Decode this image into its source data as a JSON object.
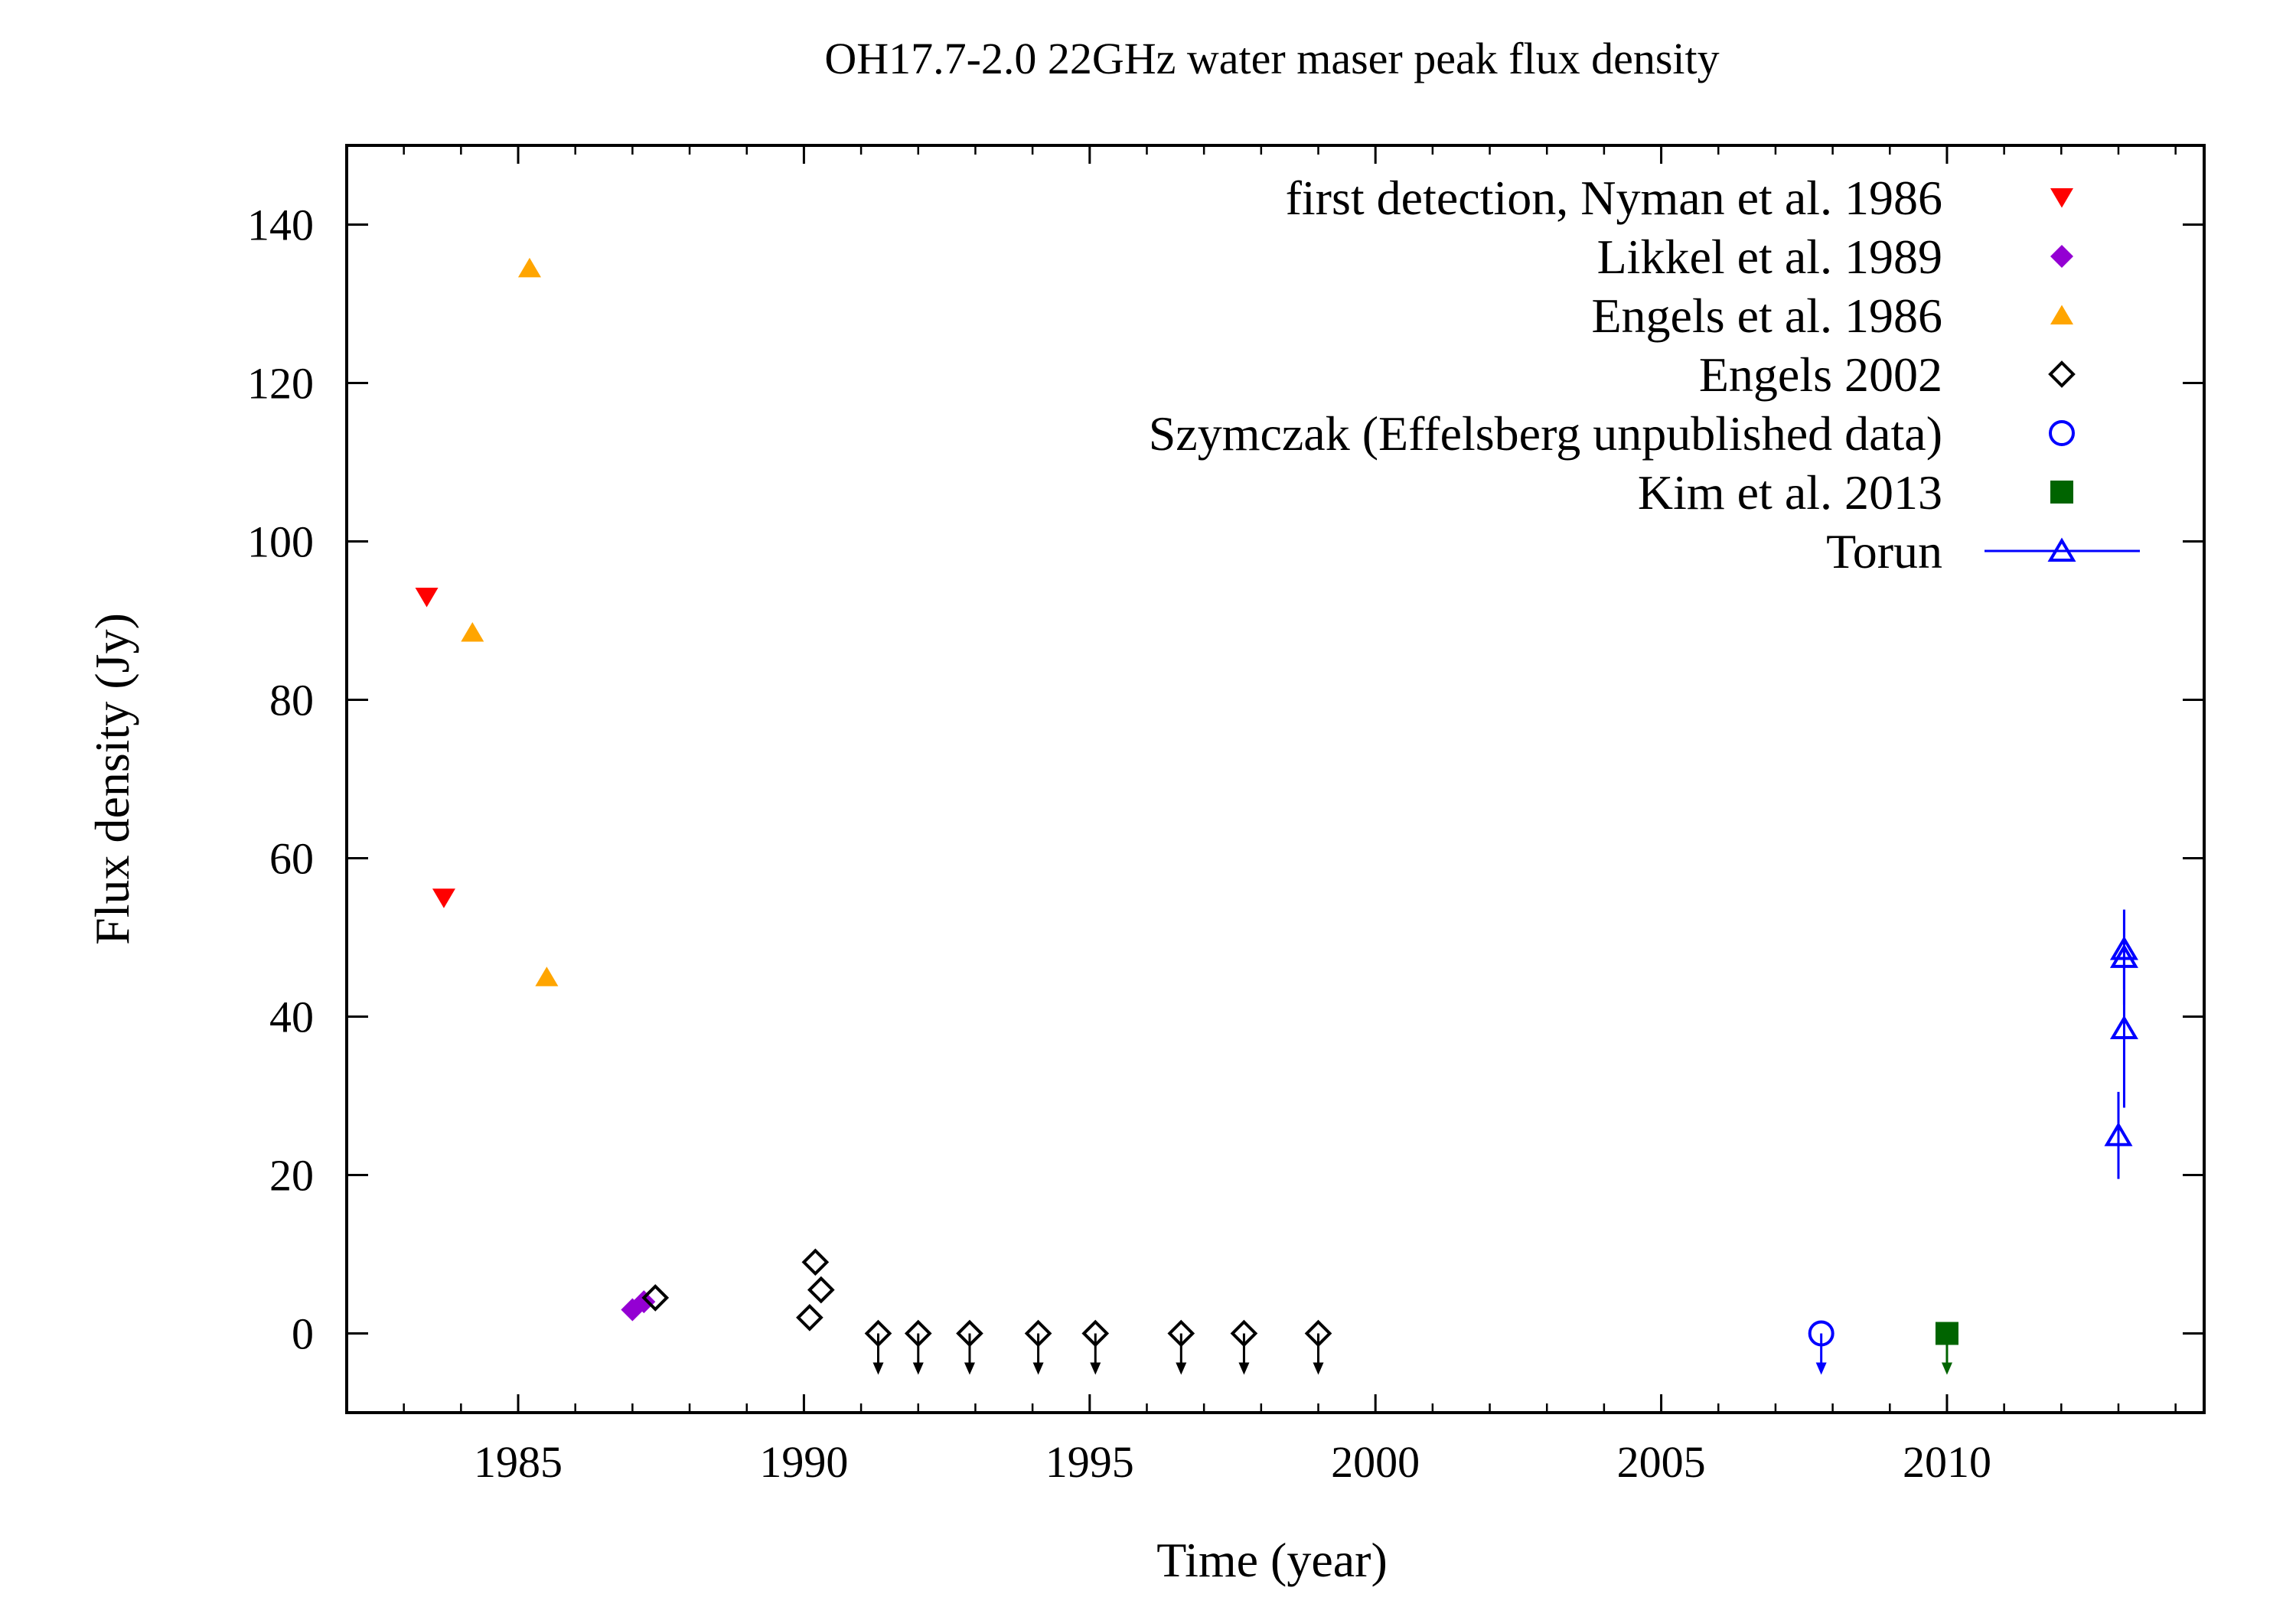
{
  "chart_data": {
    "type": "scatter",
    "title": "OH17.7-2.0 22GHz water maser peak flux density",
    "xlabel": "Time (year)",
    "ylabel": "Flux density (Jy)",
    "xlim": [
      1982.0,
      2014.5
    ],
    "ylim": [
      -10,
      150
    ],
    "xticks": [
      1985,
      1990,
      1995,
      2000,
      2005,
      2010
    ],
    "yticks": [
      0,
      20,
      40,
      60,
      80,
      100,
      120,
      140
    ],
    "xtick_labels": [
      "1985",
      "1990",
      "1995",
      "2000",
      "2005",
      "2010"
    ],
    "ytick_labels": [
      "0",
      "20",
      "40",
      "60",
      "80",
      "100",
      "120",
      "140"
    ],
    "grid": false,
    "legend_position": "top-right",
    "series": [
      {
        "name": "first detection, Nyman et al. 1986",
        "marker": "triangle-down-filled",
        "color": "#ff0000",
        "points": [
          [
            1983.4,
            93
          ],
          [
            1983.7,
            55
          ]
        ]
      },
      {
        "name": "Likkel et al. 1989",
        "marker": "diamond-filled",
        "color": "#9400d3",
        "points": [
          [
            1987.0,
            3
          ],
          [
            1987.2,
            4
          ]
        ]
      },
      {
        "name": "Engels et al. 1986",
        "marker": "triangle-up-filled",
        "color": "#ffa500",
        "points": [
          [
            1984.2,
            88.5
          ],
          [
            1985.2,
            134.5
          ],
          [
            1985.5,
            45
          ]
        ]
      },
      {
        "name": "Engels 2002",
        "marker": "diamond-open",
        "color": "#000000",
        "points": [
          [
            1987.4,
            4.5
          ],
          [
            1990.1,
            2
          ],
          [
            1990.2,
            9
          ],
          [
            1990.3,
            5.5
          ]
        ],
        "upper_limits": [
          1991.3,
          1992.0,
          1992.9,
          1994.1,
          1995.1,
          1996.6,
          1997.7,
          1999.0
        ]
      },
      {
        "name": "Szymczak (Effelsberg unpublished data)",
        "marker": "circle-open",
        "color": "#0000ff",
        "points": [],
        "upper_limits": [
          2007.8
        ]
      },
      {
        "name": "Kim et al. 2013",
        "marker": "square-filled",
        "color": "#006400",
        "points": [],
        "upper_limits": [
          2010.0
        ]
      },
      {
        "name": "Torun",
        "marker": "triangle-up-open",
        "color": "#0000ff",
        "errorbars": true,
        "points": [
          [
            2013.0,
            25,
            5.5
          ],
          [
            2013.1,
            38.5,
            10
          ],
          [
            2013.1,
            47.5,
            6
          ],
          [
            2013.1,
            48.5,
            5
          ]
        ]
      }
    ]
  }
}
